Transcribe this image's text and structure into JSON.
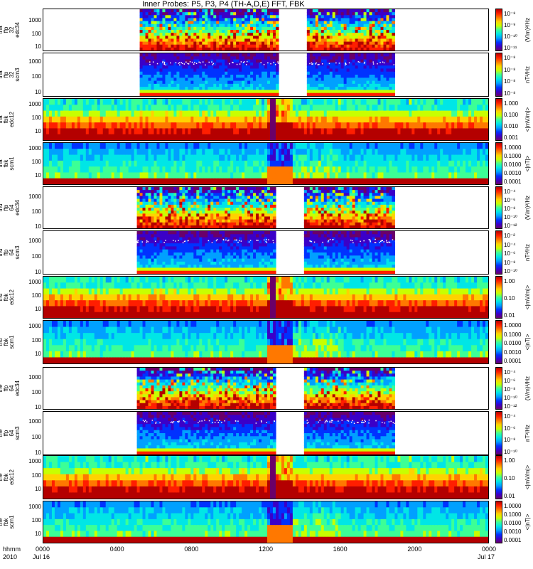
{
  "chart_data": {
    "type": "heatmap",
    "title": "Inner Probes: P5, P3, P4 (TH-A,D,E) FFT, FBK",
    "x_axis": {
      "tick_labels": [
        "0000",
        "0400",
        "0800",
        "1200",
        "1600",
        "2000",
        "0000"
      ],
      "tick_hours": [
        0,
        4,
        8,
        12,
        16,
        20,
        24
      ],
      "xlim_hours": [
        0,
        24
      ],
      "row_labels": [
        "hhmm",
        "2010"
      ],
      "date_labels": [
        "Jul 16",
        "Jul 17"
      ],
      "gaps_hours": [
        [
          0,
          5.1,
          "ffa"
        ],
        [
          12.6,
          14.2,
          "ffa"
        ],
        [
          18.9,
          24,
          "ffa"
        ]
      ]
    },
    "panels": [
      {
        "id": "tha-ffp32-edc34",
        "ylabel": "tha\nffp\n32\nedc34",
        "ymin": 5,
        "ymax": 8000,
        "log": true,
        "yticks": [
          "10",
          "100",
          "1000"
        ],
        "ctick_labels": [
          "10⁻⁸",
          "10⁻⁹",
          "10⁻¹⁰",
          "10⁻¹¹"
        ],
        "clabel": "(V/m)²/Hz",
        "kind": "ffe",
        "coverage": "tha"
      },
      {
        "id": "tha-ffp32-scm3",
        "ylabel": "tha\nffp\n32\nscm3",
        "ymin": 5,
        "ymax": 4000,
        "log": true,
        "yticks": [
          "10",
          "100",
          "1000"
        ],
        "ctick_labels": [
          "10⁻⁸",
          "10⁻⁸",
          "10⁻⁸",
          "10⁻⁸"
        ],
        "clabel": "nT²/Hz",
        "kind": "ffb",
        "coverage": "tha"
      },
      {
        "id": "tha-fbk-edc12",
        "ylabel": "tha\nfbk\nedc12",
        "ymin": 2,
        "ymax": 3000,
        "log": true,
        "yticks": [
          "10",
          "100",
          "1000"
        ],
        "ctick_labels": [
          "1.000",
          "0.100",
          "0.010",
          "0.001"
        ],
        "clabel": "<|mV/m|>",
        "kind": "fbe",
        "coverage": "full"
      },
      {
        "id": "tha-fbk-scm1",
        "ylabel": "tha\nfbk\nscm1",
        "ymin": 2,
        "ymax": 3000,
        "log": true,
        "yticks": [
          "10",
          "100",
          "1000"
        ],
        "ctick_labels": [
          "1.0000",
          "0.1000",
          "0.0100",
          "0.0010",
          "0.0001"
        ],
        "clabel": "<|nT|>",
        "kind": "fbb",
        "coverage": "full"
      },
      {
        "id": "thd-ffp64-edc34",
        "ylabel": "thd\nffp\n64\nedc34",
        "ymin": 7,
        "ymax": 5000,
        "log": true,
        "yticks": [
          "10",
          "100",
          "1000"
        ],
        "ctick_labels": [
          "10⁻⁴",
          "10⁻⁶",
          "10⁻⁸",
          "10⁻¹⁰",
          "10⁻¹²"
        ],
        "clabel": "(V/m)²/Hz",
        "kind": "ffe",
        "coverage": "thd"
      },
      {
        "id": "thd-ffp64-scm3",
        "ylabel": "thd\nffp\n64\nscm3",
        "ymin": 7,
        "ymax": 5000,
        "log": true,
        "yticks": [
          "10",
          "100",
          "1000"
        ],
        "ctick_labels": [
          "10⁻²",
          "10⁻⁴",
          "10⁻⁶",
          "10⁻⁸",
          "10⁻¹⁰"
        ],
        "clabel": "nT²/Hz",
        "kind": "ffb",
        "coverage": "thd"
      },
      {
        "id": "thd-fbk-edc12",
        "ylabel": "thd\nfbk\nedc12",
        "ymin": 2,
        "ymax": 3000,
        "log": true,
        "yticks": [
          "10",
          "100",
          "1000"
        ],
        "ctick_labels": [
          "1.00",
          "0.10",
          "0.01"
        ],
        "clabel": "<|mV/m|>",
        "kind": "fbe",
        "coverage": "full"
      },
      {
        "id": "thd-fbk-scm1",
        "ylabel": "thd\nfbk\nscm1",
        "ymin": 2,
        "ymax": 3000,
        "log": true,
        "yticks": [
          "10",
          "100",
          "1000"
        ],
        "ctick_labels": [
          "1.0000",
          "0.1000",
          "0.0100",
          "0.0010",
          "0.0001"
        ],
        "clabel": "<|nT|>",
        "kind": "fbb",
        "coverage": "full"
      },
      {
        "id": "the-ffp64-edc34",
        "ylabel": "the\nffp\n64\nedc34",
        "ymin": 7,
        "ymax": 5000,
        "log": true,
        "yticks": [
          "10",
          "100",
          "1000"
        ],
        "ctick_labels": [
          "10⁻⁴",
          "10⁻⁶",
          "10⁻⁸",
          "10⁻¹⁰",
          "10⁻¹²"
        ],
        "clabel": "(V/m)²/Hz",
        "kind": "ffe",
        "coverage": "the"
      },
      {
        "id": "the-ffp64-scm3",
        "ylabel": "the\nffp\n64\nscm3",
        "ymin": 7,
        "ymax": 5000,
        "log": true,
        "yticks": [
          "10",
          "100",
          "1000"
        ],
        "ctick_labels": [
          "10⁻⁴",
          "10⁻⁶",
          "10⁻⁸",
          "10⁻¹⁰"
        ],
        "clabel": "nT²/Hz",
        "kind": "ffb",
        "coverage": "the"
      },
      {
        "id": "the-fbk-edc12",
        "ylabel": "the\nfbk\nedc12",
        "ymin": 2,
        "ymax": 3000,
        "log": true,
        "yticks": [
          "10",
          "100",
          "1000"
        ],
        "ctick_labels": [
          "1.00",
          "0.10",
          "0.01"
        ],
        "clabel": "<|mV/m|>",
        "kind": "fbe",
        "coverage": "full"
      },
      {
        "id": "the-fbk-scm1",
        "ylabel": "the\nfbk\nscm1",
        "ymin": 2,
        "ymax": 3000,
        "log": true,
        "yticks": [
          "10",
          "100",
          "1000"
        ],
        "ctick_labels": [
          "1.0000",
          "0.1000",
          "0.0100",
          "0.0010",
          "0.0001"
        ],
        "clabel": "<|nT|>",
        "kind": "fbb",
        "coverage": "full"
      }
    ],
    "colorscale": [
      "#6a006a",
      "#3b00c8",
      "#0032ff",
      "#00a0ff",
      "#00e6e6",
      "#3cff96",
      "#c8ff00",
      "#ffd200",
      "#ff7800",
      "#ff1e00",
      "#b40000"
    ],
    "grid": false,
    "legend": "colorbars-right"
  }
}
